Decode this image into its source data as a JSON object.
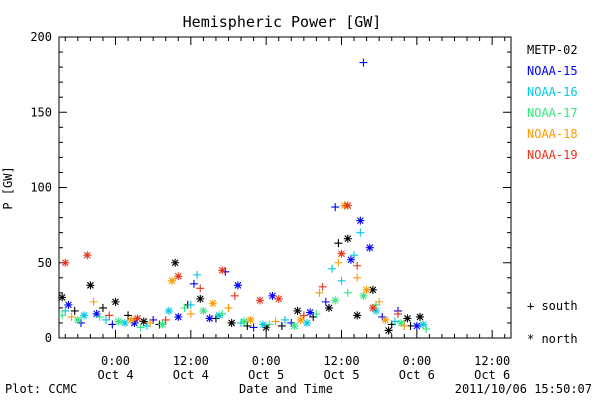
{
  "chart_data": {
    "type": "scatter",
    "title": "Hemispheric Power [GW]",
    "xlabel": "Date and Time",
    "ylabel": "P [GW]",
    "ylim": [
      0,
      200
    ],
    "y_ticks": [
      0,
      50,
      100,
      150,
      200
    ],
    "xlim": [
      "2011-10-03T15:00",
      "2011-10-06T15:00"
    ],
    "x_ticks": [
      {
        "time": "2011-10-04T00:00",
        "line1": "0:00",
        "line2": "Oct 4"
      },
      {
        "time": "2011-10-04T12:00",
        "line1": "12:00",
        "line2": "Oct 4"
      },
      {
        "time": "2011-10-05T00:00",
        "line1": "0:00",
        "line2": "Oct 5"
      },
      {
        "time": "2011-10-05T12:00",
        "line1": "12:00",
        "line2": "Oct 5"
      },
      {
        "time": "2011-10-06T00:00",
        "line1": "0:00",
        "line2": "Oct 6"
      },
      {
        "time": "2011-10-06T12:00",
        "line1": "12:00",
        "line2": "Oct 6"
      }
    ],
    "legend_position": "right",
    "symbol_legend": [
      {
        "symbol": "+",
        "label": "+ south"
      },
      {
        "symbol": "*",
        "label": "* north"
      }
    ],
    "series": [
      {
        "name": "METP-02",
        "color": "#000000",
        "points": [
          [
            "2011-10-03T15:30",
            27,
            "*"
          ],
          [
            "2011-10-03T17:30",
            18,
            "+"
          ],
          [
            "2011-10-03T20:00",
            35,
            "*"
          ],
          [
            "2011-10-03T22:00",
            20,
            "+"
          ],
          [
            "2011-10-04T00:00",
            24,
            "*"
          ],
          [
            "2011-10-04T02:00",
            15,
            "+"
          ],
          [
            "2011-10-04T04:30",
            11,
            "*"
          ],
          [
            "2011-10-04T07:00",
            9,
            "+"
          ],
          [
            "2011-10-04T09:30",
            50,
            "*"
          ],
          [
            "2011-10-04T11:30",
            22,
            "+"
          ],
          [
            "2011-10-04T13:30",
            26,
            "*"
          ],
          [
            "2011-10-04T16:00",
            13,
            "+"
          ],
          [
            "2011-10-04T18:30",
            10,
            "*"
          ],
          [
            "2011-10-04T21:00",
            8,
            "+"
          ],
          [
            "2011-10-05T00:00",
            7,
            "*"
          ],
          [
            "2011-10-05T02:30",
            8,
            "+"
          ],
          [
            "2011-10-05T05:00",
            18,
            "*"
          ],
          [
            "2011-10-05T07:30",
            14,
            "+"
          ],
          [
            "2011-10-05T10:00",
            20,
            "*"
          ],
          [
            "2011-10-05T11:30",
            63,
            "+"
          ],
          [
            "2011-10-05T13:00",
            66,
            "*"
          ],
          [
            "2011-10-05T14:30",
            15,
            "*"
          ],
          [
            "2011-10-05T17:00",
            32,
            "*"
          ],
          [
            "2011-10-05T20:00",
            9,
            "+"
          ],
          [
            "2011-10-05T22:30",
            13,
            "*"
          ],
          [
            "2011-10-06T00:30",
            14,
            "*"
          ],
          [
            "2011-10-05T19:30",
            5,
            "*"
          ],
          [
            "2011-10-05T23:00",
            8,
            "+"
          ]
        ]
      },
      {
        "name": "NOAA-15",
        "color": "#0000ff",
        "points": [
          [
            "2011-10-03T16:30",
            22,
            "*"
          ],
          [
            "2011-10-03T18:30",
            10,
            "+"
          ],
          [
            "2011-10-03T21:00",
            16,
            "*"
          ],
          [
            "2011-10-03T23:30",
            9,
            "+"
          ],
          [
            "2011-10-04T03:00",
            10,
            "*"
          ],
          [
            "2011-10-04T06:00",
            12,
            "+"
          ],
          [
            "2011-10-04T10:00",
            14,
            "*"
          ],
          [
            "2011-10-04T12:30",
            36,
            "+"
          ],
          [
            "2011-10-04T15:00",
            13,
            "*"
          ],
          [
            "2011-10-04T17:30",
            44,
            "+"
          ],
          [
            "2011-10-04T19:30",
            35,
            "*"
          ],
          [
            "2011-10-04T22:00",
            7,
            "+"
          ],
          [
            "2011-10-05T01:00",
            28,
            "*"
          ],
          [
            "2011-10-05T04:00",
            10,
            "+"
          ],
          [
            "2011-10-05T07:00",
            17,
            "*"
          ],
          [
            "2011-10-05T09:30",
            24,
            "+"
          ],
          [
            "2011-10-05T11:00",
            87,
            "+"
          ],
          [
            "2011-10-05T12:30",
            88,
            "+"
          ],
          [
            "2011-10-05T13:30",
            52,
            "*"
          ],
          [
            "2011-10-05T15:00",
            78,
            "*"
          ],
          [
            "2011-10-05T15:30",
            183,
            "+"
          ],
          [
            "2011-10-05T16:30",
            60,
            "*"
          ],
          [
            "2011-10-05T18:30",
            14,
            "+"
          ],
          [
            "2011-10-05T21:00",
            18,
            "+"
          ],
          [
            "2011-10-06T00:00",
            8,
            "*"
          ]
        ]
      },
      {
        "name": "NOAA-16",
        "color": "#00c8e6",
        "points": [
          [
            "2011-10-03T16:00",
            18,
            "+"
          ],
          [
            "2011-10-03T19:00",
            15,
            "*"
          ],
          [
            "2011-10-03T22:30",
            12,
            "+"
          ],
          [
            "2011-10-04T01:30",
            10,
            "*"
          ],
          [
            "2011-10-04T05:00",
            8,
            "+"
          ],
          [
            "2011-10-04T08:30",
            18,
            "*"
          ],
          [
            "2011-10-04T12:00",
            22,
            "+"
          ],
          [
            "2011-10-04T13:00",
            42,
            "+"
          ],
          [
            "2011-10-04T16:30",
            15,
            "*"
          ],
          [
            "2011-10-04T20:00",
            10,
            "+"
          ],
          [
            "2011-10-04T23:30",
            9,
            "*"
          ],
          [
            "2011-10-05T03:00",
            12,
            "+"
          ],
          [
            "2011-10-05T06:30",
            10,
            "*"
          ],
          [
            "2011-10-05T10:30",
            46,
            "+"
          ],
          [
            "2011-10-05T12:00",
            38,
            "+"
          ],
          [
            "2011-10-05T14:00",
            55,
            "+"
          ],
          [
            "2011-10-05T15:00",
            70,
            "+"
          ],
          [
            "2011-10-05T17:30",
            18,
            "*"
          ],
          [
            "2011-10-05T20:30",
            11,
            "+"
          ],
          [
            "2011-10-06T01:00",
            9,
            "*"
          ]
        ]
      },
      {
        "name": "NOAA-17",
        "color": "#33e680",
        "points": [
          [
            "2011-10-03T15:30",
            15,
            "+"
          ],
          [
            "2011-10-03T18:00",
            12,
            "*"
          ],
          [
            "2011-10-03T21:30",
            14,
            "+"
          ],
          [
            "2011-10-04T00:30",
            11,
            "*"
          ],
          [
            "2011-10-04T04:00",
            7,
            "+"
          ],
          [
            "2011-10-04T07:30",
            9,
            "*"
          ],
          [
            "2011-10-04T11:00",
            20,
            "+"
          ],
          [
            "2011-10-04T14:00",
            18,
            "*"
          ],
          [
            "2011-10-04T17:00",
            16,
            "+"
          ],
          [
            "2011-10-04T20:30",
            11,
            "*"
          ],
          [
            "2011-10-05T00:30",
            9,
            "+"
          ],
          [
            "2011-10-05T04:30",
            8,
            "*"
          ],
          [
            "2011-10-05T08:00",
            16,
            "+"
          ],
          [
            "2011-10-05T11:00",
            25,
            "*"
          ],
          [
            "2011-10-05T13:00",
            30,
            "+"
          ],
          [
            "2011-10-05T15:30",
            28,
            "*"
          ],
          [
            "2011-10-05T17:30",
            22,
            "+"
          ],
          [
            "2011-10-05T21:30",
            10,
            "*"
          ],
          [
            "2011-10-06T01:30",
            6,
            "+"
          ]
        ]
      },
      {
        "name": "NOAA-18",
        "color": "#ff9900",
        "points": [
          [
            "2011-10-03T17:00",
            14,
            "+"
          ],
          [
            "2011-10-03T20:30",
            24,
            "+"
          ],
          [
            "2011-10-04T02:30",
            12,
            "*"
          ],
          [
            "2011-10-04T05:30",
            10,
            "+"
          ],
          [
            "2011-10-04T09:00",
            38,
            "*"
          ],
          [
            "2011-10-04T12:00",
            16,
            "+"
          ],
          [
            "2011-10-04T15:30",
            23,
            "*"
          ],
          [
            "2011-10-04T18:00",
            20,
            "+"
          ],
          [
            "2011-10-04T21:30",
            12,
            "*"
          ],
          [
            "2011-10-05T01:30",
            11,
            "+"
          ],
          [
            "2011-10-05T05:30",
            12,
            "*"
          ],
          [
            "2011-10-05T08:30",
            30,
            "+"
          ],
          [
            "2011-10-05T11:30",
            50,
            "+"
          ],
          [
            "2011-10-05T12:30",
            88,
            "*"
          ],
          [
            "2011-10-05T14:30",
            40,
            "+"
          ],
          [
            "2011-10-05T16:00",
            32,
            "*"
          ],
          [
            "2011-10-05T18:00",
            24,
            "+"
          ],
          [
            "2011-10-05T19:00",
            12,
            "*"
          ],
          [
            "2011-10-05T22:00",
            8,
            "+"
          ]
        ]
      },
      {
        "name": "NOAA-19",
        "color": "#e63319",
        "points": [
          [
            "2011-10-03T16:00",
            50,
            "*"
          ],
          [
            "2011-10-03T19:30",
            55,
            "*"
          ],
          [
            "2011-10-03T23:00",
            15,
            "+"
          ],
          [
            "2011-10-04T03:30",
            13,
            "*"
          ],
          [
            "2011-10-04T08:00",
            12,
            "+"
          ],
          [
            "2011-10-04T10:00",
            41,
            "*"
          ],
          [
            "2011-10-04T13:30",
            33,
            "+"
          ],
          [
            "2011-10-04T17:00",
            45,
            "*"
          ],
          [
            "2011-10-04T19:00",
            28,
            "+"
          ],
          [
            "2011-10-04T23:00",
            25,
            "*"
          ],
          [
            "2011-10-05T02:00",
            26,
            "*"
          ],
          [
            "2011-10-05T06:00",
            15,
            "+"
          ],
          [
            "2011-10-05T09:00",
            34,
            "+"
          ],
          [
            "2011-10-05T12:00",
            56,
            "*"
          ],
          [
            "2011-10-05T13:00",
            88,
            "*"
          ],
          [
            "2011-10-05T14:30",
            48,
            "+"
          ],
          [
            "2011-10-05T17:00",
            20,
            "*"
          ],
          [
            "2011-10-05T21:00",
            16,
            "+"
          ]
        ]
      }
    ]
  },
  "footer": {
    "plot_credit": "Plot: CCMC",
    "timestamp": "2011/10/06 15:50:07"
  }
}
